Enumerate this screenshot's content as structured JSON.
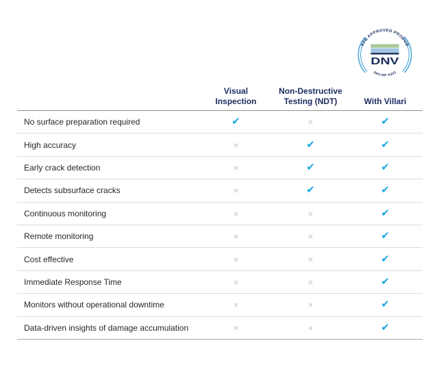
{
  "badge": {
    "top_text": "TYPE APPROVED PRODUCT",
    "name": "DNV",
    "bottom_text": "DNV-RP-A203",
    "star": "✶"
  },
  "header": {
    "labels": [
      "Visual\nInspection",
      "Non-Destructive\nTesting (NDT)",
      "With Villari"
    ]
  },
  "marks": {
    "check": "✔",
    "cross": "✕"
  },
  "colors": {
    "check": "#18A7E2",
    "cross": "#C3C3C3",
    "navy": "#1B2B5E",
    "row_text": "#262626",
    "arc_blue": "#44A3D9",
    "bar_green": "#A6C897",
    "bar_blue": "#9CC4E6",
    "bar_navy": "#21386E",
    "border_light": "#DCDCDC",
    "border_header": "#8F8F8F",
    "border_bottom": "#A8A8A8"
  },
  "chart_data": {
    "type": "table",
    "title": "",
    "columns": [
      "Visual Inspection",
      "Non-Destructive Testing (NDT)",
      "With Villari"
    ],
    "rows": [
      {
        "label": "No surface preparation required",
        "values": [
          true,
          false,
          true
        ]
      },
      {
        "label": "High accuracy",
        "values": [
          false,
          true,
          true
        ]
      },
      {
        "label": "Early crack detection",
        "values": [
          false,
          true,
          true
        ]
      },
      {
        "label": "Detects subsurface cracks",
        "values": [
          false,
          true,
          true
        ]
      },
      {
        "label": "Continuous monitoring",
        "values": [
          false,
          false,
          true
        ]
      },
      {
        "label": "Remote monitoring",
        "values": [
          false,
          false,
          true
        ]
      },
      {
        "label": "Cost effective",
        "values": [
          false,
          false,
          true
        ]
      },
      {
        "label": "Immediate Response Time",
        "values": [
          false,
          false,
          true
        ]
      },
      {
        "label": "Monitors without operational downtime",
        "values": [
          false,
          false,
          true
        ]
      },
      {
        "label": "Data-driven insights of damage accumulation",
        "values": [
          false,
          false,
          true
        ]
      }
    ]
  }
}
